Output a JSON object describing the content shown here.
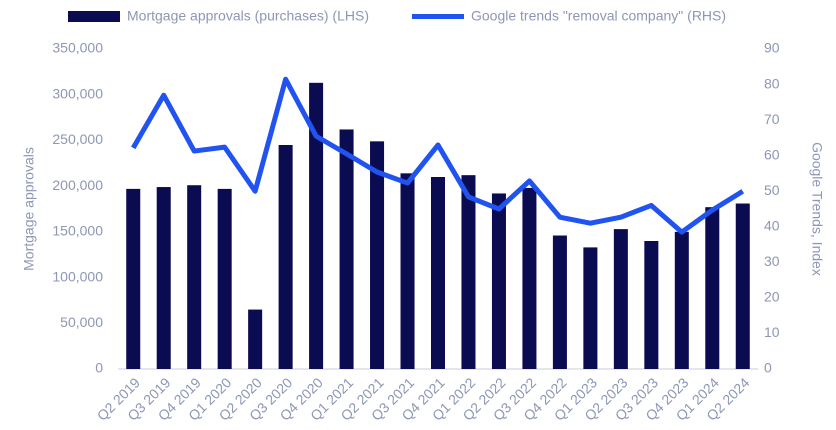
{
  "chart_data": {
    "type": "bar-line",
    "categories": [
      "Q2 2019",
      "Q3 2019",
      "Q4 2019",
      "Q1 2020",
      "Q2 2020",
      "Q3 2020",
      "Q4 2020",
      "Q1 2021",
      "Q2 2021",
      "Q3 2021",
      "Q4 2021",
      "Q1 2022",
      "Q2 2022",
      "Q3 2022",
      "Q4 2022",
      "Q1 2023",
      "Q2 2023",
      "Q3 2023",
      "Q4 2023",
      "Q1 2024",
      "Q2 2024"
    ],
    "series": [
      {
        "name": "Mortgage approvals (purchases) (LHS)",
        "type": "bar",
        "color": "#0b0b52",
        "values": [
          197000,
          199000,
          201000,
          197000,
          65000,
          245000,
          313000,
          262000,
          249000,
          214000,
          210000,
          212000,
          192000,
          198000,
          146000,
          133000,
          153000,
          140000,
          150000,
          177000,
          181000
        ]
      },
      {
        "name": "Google trends \"removal company\" (RHS)",
        "type": "line",
        "axis": "y2",
        "color": "#2053f0",
        "values": [
          62.2,
          77,
          61.3,
          62.4,
          50,
          81.5,
          65.5,
          60.5,
          55.4,
          52.3,
          63,
          48.4,
          45,
          52.9,
          42.7,
          41,
          42.7,
          46,
          38.5,
          44.7,
          50
        ]
      }
    ],
    "ylabel": "Mortgage approvals",
    "y2label": "Google Trends, Index",
    "ylim": [
      0,
      350000
    ],
    "yticks": [
      0,
      {
        "value": 50000,
        "label": "50,000"
      },
      {
        "value": 100000,
        "label": "100,000"
      },
      {
        "value": 150000,
        "label": "150,000"
      },
      {
        "value": 200000,
        "label": "200,000"
      },
      {
        "value": 250000,
        "label": "250,000"
      },
      {
        "value": 300000,
        "label": "300,000"
      },
      {
        "value": 350000,
        "label": "350,000"
      }
    ],
    "y2lim": [
      0,
      90
    ],
    "y2ticks": [
      0,
      10,
      20,
      30,
      40,
      50,
      60,
      70,
      80,
      90
    ],
    "grid": false,
    "legend": "top"
  }
}
